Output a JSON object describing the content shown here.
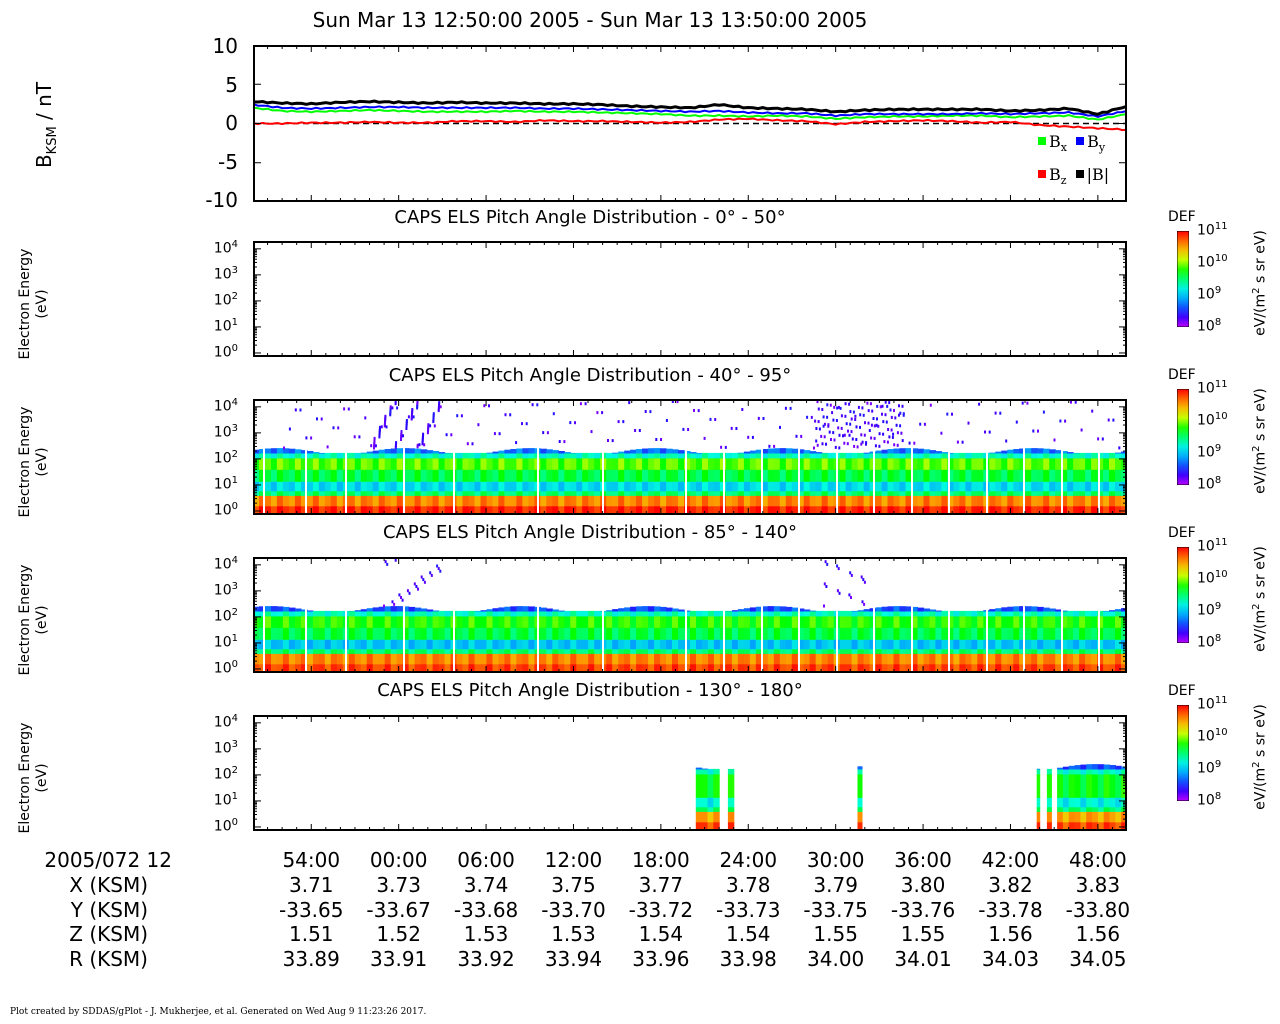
{
  "title": "Sun Mar 13 12:50:00 2005 - Sun Mar 13 13:50:00 2005",
  "mag_panel": {
    "ylabel_main": "B",
    "ylabel_sub": "KSM",
    "ylabel_unit": " / nT",
    "legend": [
      {
        "base": "B",
        "sub": "x",
        "color": "#00ff00"
      },
      {
        "base": "B",
        "sub": "y",
        "color": "#0000ff"
      },
      {
        "base": "B",
        "sub": "z",
        "color": "#ff0000"
      },
      {
        "base": "|B|",
        "sub": "",
        "color": "#000000"
      }
    ]
  },
  "spectro_ylabel_line1": "Electron Energy",
  "spectro_ylabel_line2": "(eV)",
  "colorbar": {
    "label": "DEF",
    "unit": "eV/(m² s sr eV)",
    "ticks": [
      "11",
      "10",
      "9",
      "8"
    ],
    "tick_base": "10"
  },
  "panels": [
    {
      "title": "CAPS ELS Pitch Angle Distribution - 0° - 50°"
    },
    {
      "title": "CAPS ELS Pitch Angle Distribution - 40° - 95°"
    },
    {
      "title": "CAPS ELS Pitch Angle Distribution - 85° - 140°"
    },
    {
      "title": "CAPS ELS Pitch Angle Distribution - 130° - 180°"
    }
  ],
  "ephemeris": {
    "row_labels": [
      "2005/072 12",
      "X (KSM)",
      "Y (KSM)",
      "Z (KSM)",
      "R (KSM)"
    ],
    "columns": [
      {
        "time": "54:00",
        "x": "3.71",
        "y": "-33.65",
        "z": "1.51",
        "r": "33.89"
      },
      {
        "time": "00:00",
        "x": "3.73",
        "y": "-33.67",
        "z": "1.52",
        "r": "33.91"
      },
      {
        "time": "06:00",
        "x": "3.74",
        "y": "-33.68",
        "z": "1.53",
        "r": "33.92"
      },
      {
        "time": "12:00",
        "x": "3.75",
        "y": "-33.70",
        "z": "1.53",
        "r": "33.94"
      },
      {
        "time": "18:00",
        "x": "3.77",
        "y": "-33.72",
        "z": "1.54",
        "r": "33.96"
      },
      {
        "time": "24:00",
        "x": "3.78",
        "y": "-33.73",
        "z": "1.54",
        "r": "33.98"
      },
      {
        "time": "30:00",
        "x": "3.79",
        "y": "-33.75",
        "z": "1.55",
        "r": "34.00"
      },
      {
        "time": "36:00",
        "x": "3.80",
        "y": "-33.76",
        "z": "1.55",
        "r": "34.01"
      },
      {
        "time": "42:00",
        "x": "3.82",
        "y": "-33.78",
        "z": "1.56",
        "r": "34.03"
      },
      {
        "time": "48:00",
        "x": "3.83",
        "y": "-33.80",
        "z": "1.56",
        "r": "34.05"
      }
    ]
  },
  "footer": "Plot created by SDDAS/gPlot - J. Mukherjee, et al.  Generated on Wed Aug 9 11:23:26 2017.",
  "chart_data": [
    {
      "type": "line",
      "title": "Sun Mar 13 12:50:00 2005 - Sun Mar 13 13:50:00 2005",
      "ylabel": "BKSM / nT",
      "xlabel": "",
      "xlim_minutes": [
        50,
        110
      ],
      "ylim": [
        -10,
        10
      ],
      "yticks": [
        10,
        5,
        0,
        -5,
        -10
      ],
      "x_minutes": [
        50,
        52,
        54,
        56,
        58,
        60,
        62,
        64,
        66,
        68,
        70,
        72,
        74,
        76,
        78,
        80,
        82,
        84,
        86,
        88,
        90,
        92,
        94,
        96,
        98,
        100,
        102,
        104,
        106,
        108,
        110
      ],
      "series": [
        {
          "name": "Bx",
          "color": "#00ff00",
          "values": [
            2.0,
            1.6,
            1.5,
            1.6,
            1.7,
            1.6,
            1.5,
            1.5,
            1.5,
            1.6,
            1.5,
            1.5,
            1.4,
            1.3,
            1.2,
            1.0,
            1.0,
            0.9,
            1.0,
            0.9,
            0.6,
            0.8,
            0.9,
            0.9,
            1.0,
            1.0,
            0.8,
            0.9,
            1.0,
            0.5,
            1.2
          ]
        },
        {
          "name": "By",
          "color": "#0000ff",
          "values": [
            2.4,
            2.0,
            1.9,
            2.0,
            2.1,
            2.1,
            2.0,
            2.0,
            2.0,
            2.0,
            1.9,
            1.9,
            1.8,
            1.7,
            1.6,
            1.5,
            1.6,
            1.4,
            1.3,
            1.3,
            1.0,
            1.2,
            1.2,
            1.2,
            1.2,
            1.3,
            1.2,
            1.3,
            1.4,
            0.9,
            1.6
          ]
        },
        {
          "name": "Bz",
          "color": "#ff0000",
          "values": [
            0.0,
            0.0,
            0.1,
            0.1,
            0.2,
            0.1,
            0.1,
            0.3,
            0.3,
            0.2,
            0.4,
            0.3,
            0.3,
            0.2,
            0.1,
            0.2,
            0.5,
            0.6,
            0.4,
            0.3,
            -0.1,
            0.2,
            0.3,
            0.4,
            0.3,
            0.1,
            0.2,
            -0.2,
            -0.4,
            -0.6,
            -0.8
          ]
        },
        {
          "name": "|B|",
          "color": "#000000",
          "values": [
            2.8,
            2.6,
            2.5,
            2.7,
            2.8,
            2.7,
            2.6,
            2.7,
            2.6,
            2.6,
            2.5,
            2.5,
            2.4,
            2.2,
            2.1,
            2.0,
            2.4,
            2.0,
            1.9,
            1.8,
            1.5,
            1.7,
            1.8,
            1.8,
            1.8,
            1.8,
            1.6,
            1.7,
            1.9,
            1.2,
            2.2
          ]
        }
      ]
    },
    {
      "type": "heatmap",
      "title": "CAPS ELS Pitch Angle Distribution - 0° - 50°",
      "ylabel": "Electron Energy (eV)",
      "yscale": "log",
      "ylim": [
        1,
        20000
      ],
      "colorbar_range": [
        100000000.0,
        100000000000.0
      ],
      "colorbar_label": "DEF",
      "data": "empty"
    },
    {
      "type": "heatmap",
      "title": "CAPS ELS Pitch Angle Distribution - 40° - 95°",
      "ylabel": "Electron Energy (eV)",
      "yscale": "log",
      "ylim": [
        1,
        20000
      ],
      "colorbar_range": [
        100000000.0,
        100000000000.0
      ],
      "colorbar_label": "DEF",
      "energy_levels_eV": [
        1,
        3,
        10,
        30,
        100,
        200
      ],
      "log10_DEF_by_energy": [
        10.9,
        10.6,
        9.1,
        9.6,
        9.9,
        8.7
      ]
    },
    {
      "type": "heatmap",
      "title": "CAPS ELS Pitch Angle Distribution - 85° - 140°",
      "ylabel": "Electron Energy (eV)",
      "yscale": "log",
      "ylim": [
        1,
        20000
      ],
      "colorbar_range": [
        100000000.0,
        100000000000.0
      ],
      "colorbar_label": "DEF",
      "energy_levels_eV": [
        1,
        3,
        10,
        30,
        100,
        200
      ],
      "log10_DEF_by_energy": [
        10.8,
        10.6,
        9.0,
        9.6,
        9.8,
        8.6
      ]
    },
    {
      "type": "heatmap",
      "title": "CAPS ELS Pitch Angle Distribution - 130° - 180°",
      "ylabel": "Electron Energy (eV)",
      "yscale": "log",
      "ylim": [
        1,
        20000
      ],
      "colorbar_range": [
        100000000.0,
        100000000000.0
      ],
      "colorbar_label": "DEF",
      "data_intervals_minutes": [
        [
          80.4,
          82.0
        ],
        [
          82.6,
          83.0
        ],
        [
          91.5,
          91.8
        ],
        [
          103.8,
          104.0
        ],
        [
          104.5,
          104.8
        ],
        [
          105.2,
          110.0
        ]
      ],
      "log10_DEF_by_energy": [
        10.8,
        10.5,
        9.2,
        9.7,
        9.7,
        8.6
      ]
    }
  ],
  "x_axis_ticks_minutes": [
    54,
    60,
    66,
    72,
    78,
    84,
    90,
    96,
    102,
    108
  ]
}
